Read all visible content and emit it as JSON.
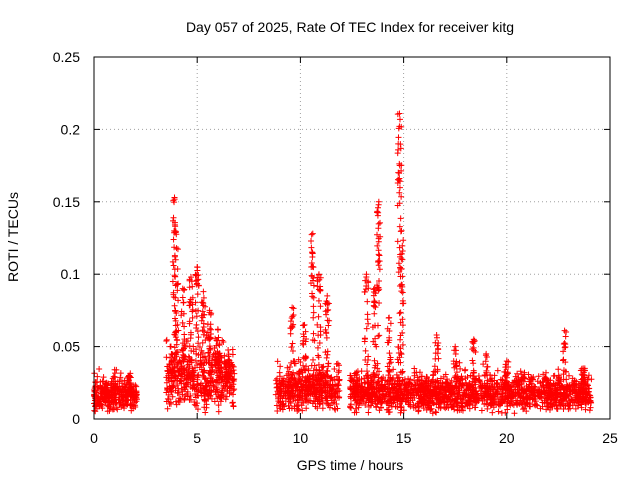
{
  "chart_data": {
    "type": "scatter",
    "title": "Day 057 of 2025, Rate Of TEC Index for receiver kitg",
    "xlabel": "GPS time / hours",
    "ylabel": "ROTI / TECUs",
    "xlim": [
      0,
      25
    ],
    "ylim": [
      0,
      0.25
    ],
    "x_ticks": [
      0,
      5,
      10,
      15,
      20,
      25
    ],
    "x_tick_labels": [
      "0",
      "5",
      "10",
      "15",
      "20",
      "25"
    ],
    "y_ticks": [
      0,
      0.05,
      0.1,
      0.15,
      0.2,
      0.25
    ],
    "y_tick_labels": [
      "0",
      "0.05",
      "0.1",
      "0.15",
      "0.2",
      "0.25"
    ],
    "grid": true,
    "marker": "+",
    "color": "#ff0000",
    "segments": [
      {
        "start": 0.0,
        "end": 2.1,
        "base": 0.013,
        "spread": 0.01
      },
      {
        "start": 3.5,
        "end": 6.8,
        "base": 0.022,
        "spread": 0.02
      },
      {
        "start": 8.8,
        "end": 11.9,
        "base": 0.016,
        "spread": 0.014
      },
      {
        "start": 12.4,
        "end": 24.1,
        "base": 0.014,
        "spread": 0.012
      }
    ],
    "peaks": [
      {
        "x": 0.0,
        "y": 0.02
      },
      {
        "x": 0.6,
        "y": 0.025
      },
      {
        "x": 1.0,
        "y": 0.034
      },
      {
        "x": 1.7,
        "y": 0.03
      },
      {
        "x": 3.9,
        "y": 0.153
      },
      {
        "x": 4.0,
        "y": 0.118
      },
      {
        "x": 4.3,
        "y": 0.09
      },
      {
        "x": 4.7,
        "y": 0.098
      },
      {
        "x": 5.0,
        "y": 0.105
      },
      {
        "x": 5.3,
        "y": 0.088
      },
      {
        "x": 5.6,
        "y": 0.075
      },
      {
        "x": 6.0,
        "y": 0.062
      },
      {
        "x": 6.5,
        "y": 0.04
      },
      {
        "x": 9.6,
        "y": 0.077
      },
      {
        "x": 10.2,
        "y": 0.065
      },
      {
        "x": 10.6,
        "y": 0.128
      },
      {
        "x": 10.9,
        "y": 0.1
      },
      {
        "x": 11.3,
        "y": 0.085
      },
      {
        "x": 13.2,
        "y": 0.1
      },
      {
        "x": 13.6,
        "y": 0.09
      },
      {
        "x": 13.8,
        "y": 0.15
      },
      {
        "x": 14.3,
        "y": 0.07
      },
      {
        "x": 14.8,
        "y": 0.211
      },
      {
        "x": 14.9,
        "y": 0.13
      },
      {
        "x": 16.6,
        "y": 0.058
      },
      {
        "x": 17.5,
        "y": 0.05
      },
      {
        "x": 18.4,
        "y": 0.055
      },
      {
        "x": 19.0,
        "y": 0.045
      },
      {
        "x": 20.0,
        "y": 0.04
      },
      {
        "x": 22.8,
        "y": 0.061
      },
      {
        "x": 23.7,
        "y": 0.035
      }
    ]
  }
}
